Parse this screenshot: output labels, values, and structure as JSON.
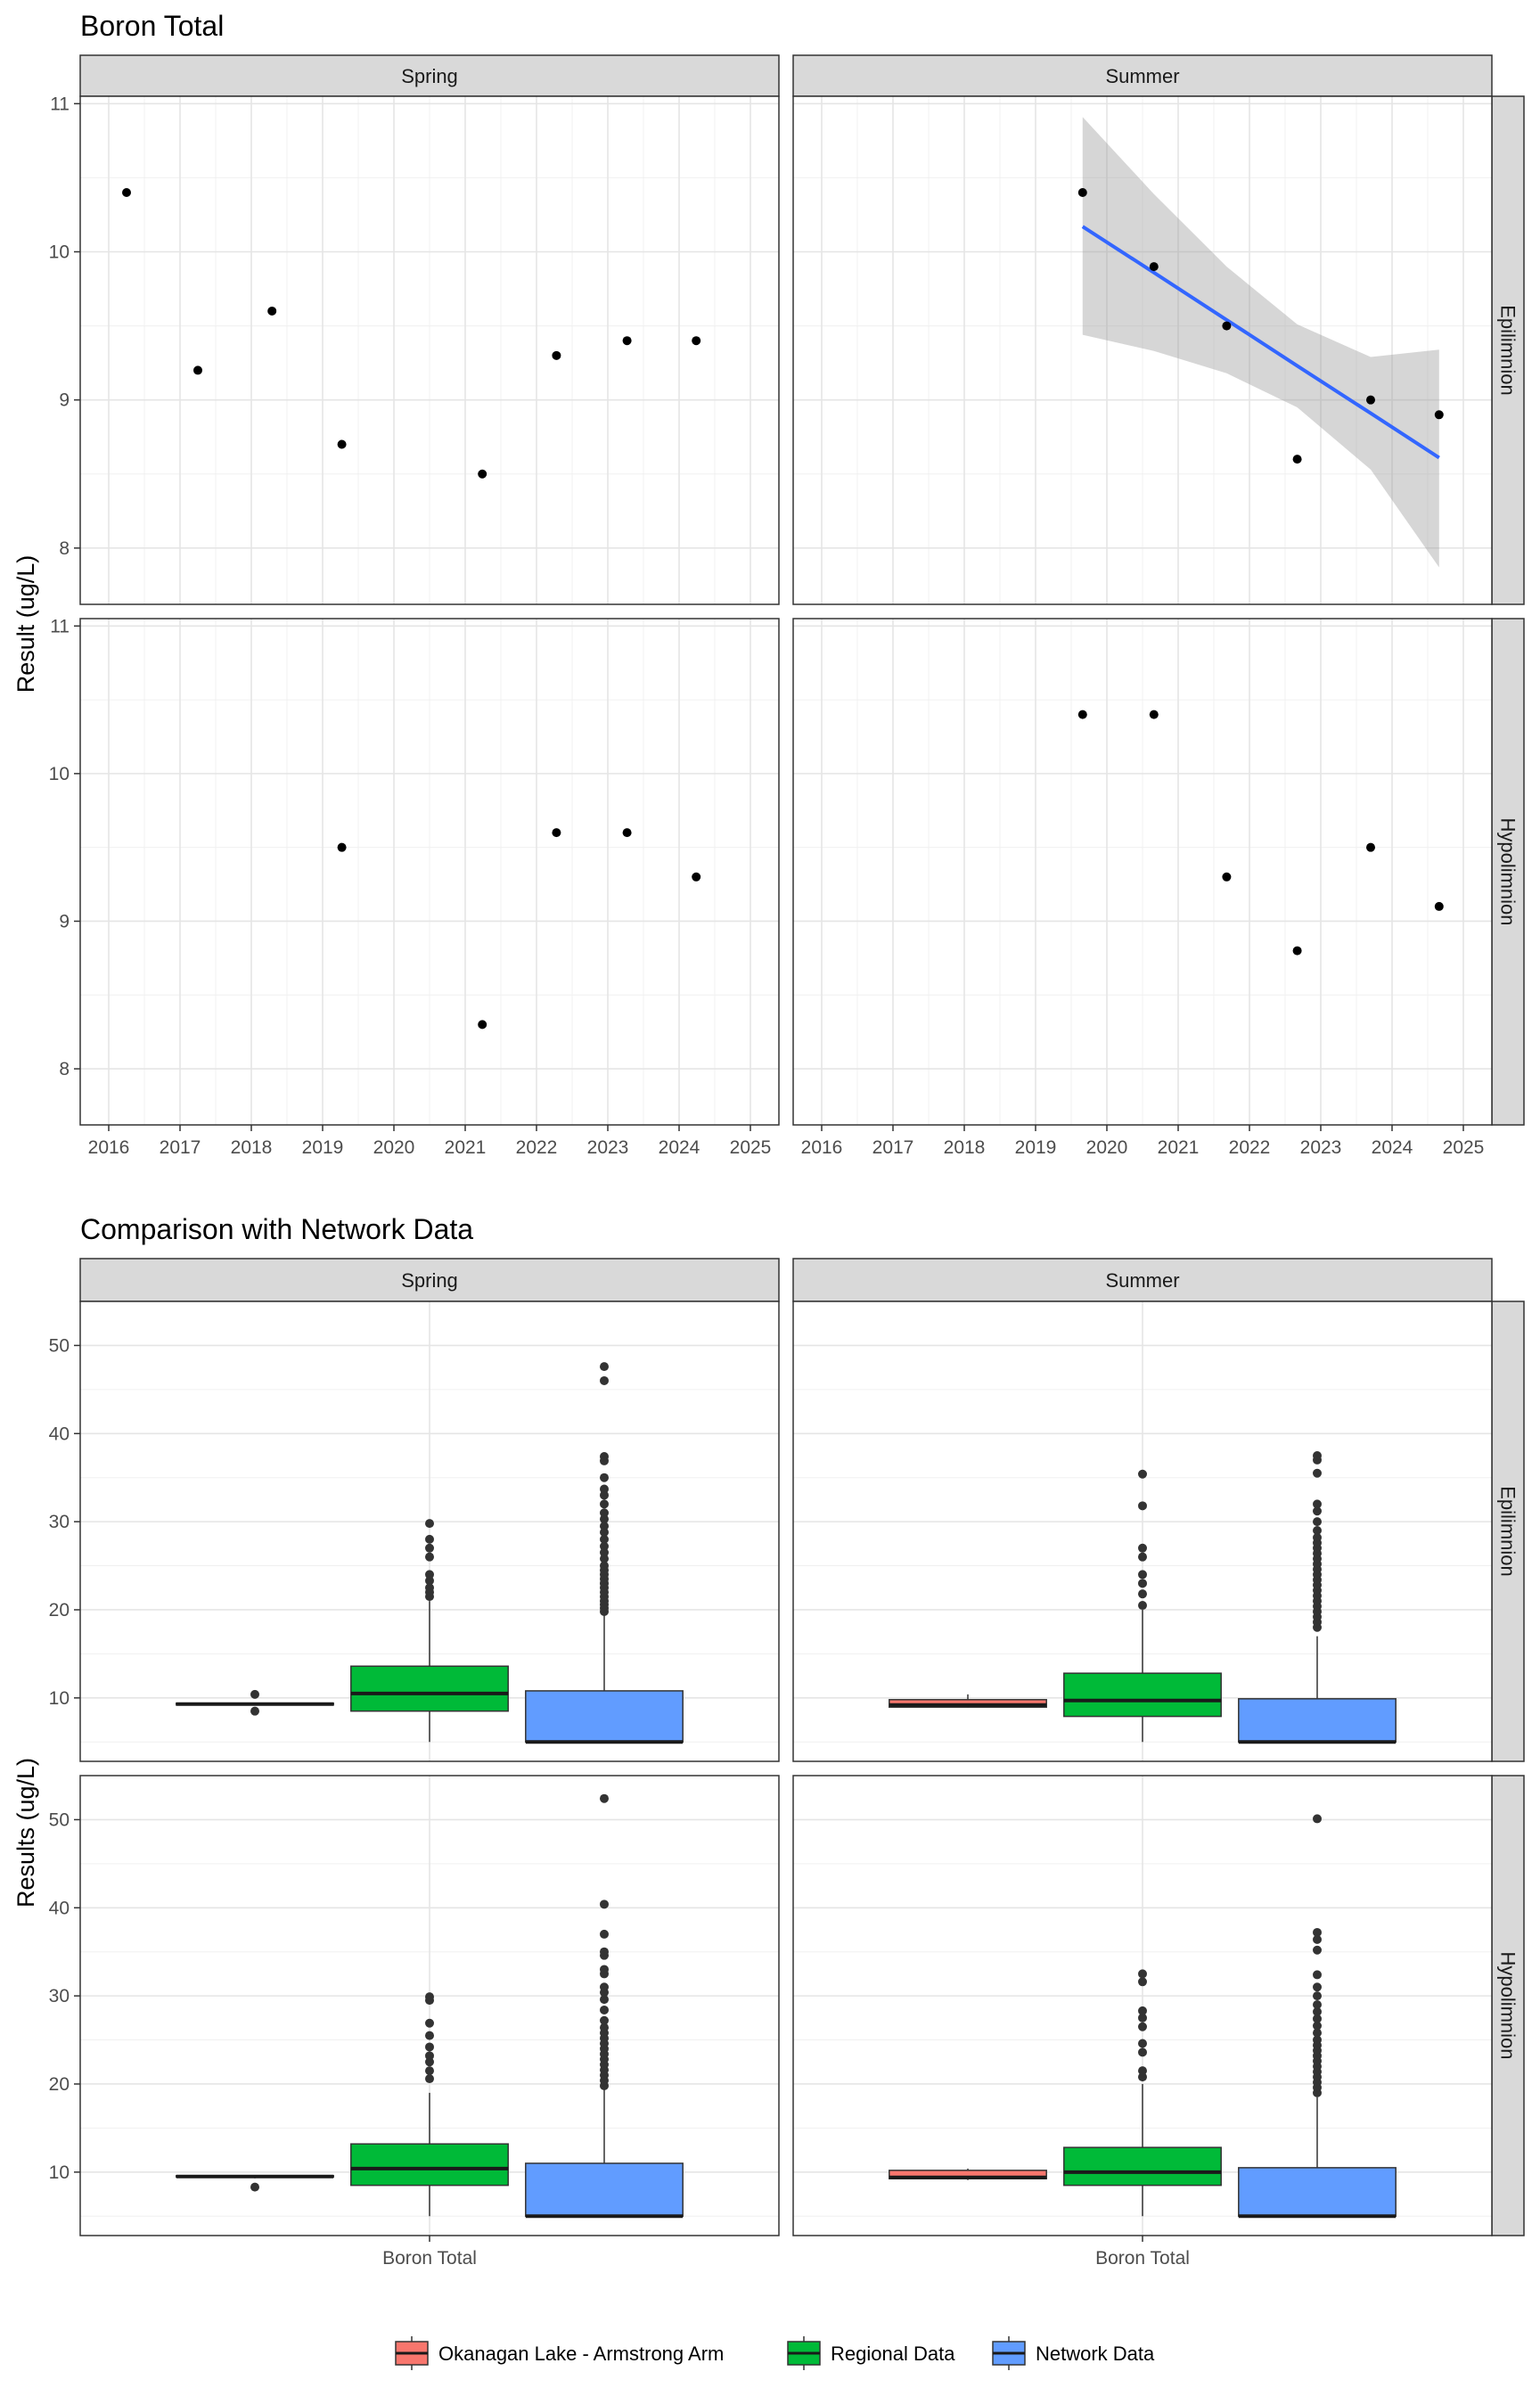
{
  "chart_data": [
    {
      "type": "scatter",
      "title": "Boron Total",
      "ylabel": "Result (ug/L)",
      "xlabel": "",
      "x_ticks": [
        "2016",
        "2017",
        "2018",
        "2019",
        "2020",
        "2021",
        "2022",
        "2023",
        "2024",
        "2025"
      ],
      "y_ticks": [
        "8",
        "9",
        "10",
        "11"
      ],
      "xlim": [
        2015.6,
        2025.4
      ],
      "ylim": [
        7.62,
        11.05
      ],
      "columns": [
        "Spring",
        "Summer"
      ],
      "rows": [
        "Epilimnion",
        "Hypolimnion"
      ],
      "grid": true,
      "panels": [
        {
          "column": "Spring",
          "row": "Epilimnion",
          "points": [
            [
              2016.25,
              10.4
            ],
            [
              2017.25,
              9.2
            ],
            [
              2018.29,
              9.6
            ],
            [
              2019.27,
              8.7
            ],
            [
              2021.24,
              8.5
            ],
            [
              2022.28,
              9.3
            ],
            [
              2023.27,
              9.4
            ],
            [
              2024.24,
              9.4
            ]
          ]
        },
        {
          "column": "Summer",
          "row": "Epilimnion",
          "points": [
            [
              2019.66,
              10.4
            ],
            [
              2020.66,
              9.9
            ],
            [
              2021.68,
              9.5
            ],
            [
              2022.67,
              8.6
            ],
            [
              2023.7,
              9.0
            ],
            [
              2024.66,
              8.9
            ]
          ],
          "trend": {
            "x": [
              2019.66,
              2020.66,
              2021.68,
              2022.67,
              2023.7,
              2024.66
            ],
            "y": [
              10.17,
              9.86,
              9.54,
              9.23,
              8.91,
              8.61
            ],
            "lower": [
              9.44,
              9.33,
              9.18,
              8.95,
              8.53,
              7.87
            ],
            "upper": [
              10.91,
              10.39,
              9.9,
              9.51,
              9.29,
              9.34
            ],
            "color": "#3366FF",
            "band_color": "#999999"
          }
        },
        {
          "column": "Spring",
          "row": "Hypolimnion",
          "points": [
            [
              2019.27,
              9.5
            ],
            [
              2021.24,
              8.3
            ],
            [
              2022.28,
              9.6
            ],
            [
              2023.27,
              9.6
            ],
            [
              2024.24,
              9.3
            ]
          ]
        },
        {
          "column": "Summer",
          "row": "Hypolimnion",
          "points": [
            [
              2019.66,
              10.4
            ],
            [
              2020.66,
              10.4
            ],
            [
              2021.68,
              9.3
            ],
            [
              2022.67,
              8.8
            ],
            [
              2023.7,
              9.5
            ],
            [
              2024.66,
              9.1
            ]
          ]
        }
      ]
    },
    {
      "type": "box",
      "title": "Comparison with Network Data",
      "ylabel": "Results (ug/L)",
      "xlabel": "",
      "categories": [
        "Boron Total"
      ],
      "y_ticks": [
        "10",
        "20",
        "30",
        "40",
        "50"
      ],
      "ylim": [
        2.8,
        55.0
      ],
      "columns": [
        "Spring",
        "Summer"
      ],
      "rows": [
        "Epilimnion",
        "Hypolimnion"
      ],
      "legend": {
        "placement": "bottom",
        "entries": [
          {
            "name": "Okanagan Lake - Armstrong Arm",
            "color": "#F8766D"
          },
          {
            "name": "Regional Data",
            "color": "#00BA38"
          },
          {
            "name": "Network Data",
            "color": "#619CFF"
          }
        ]
      },
      "panels": [
        {
          "column": "Spring",
          "row": "Epilimnion",
          "boxes": [
            {
              "series": "Okanagan Lake - Armstrong Arm",
              "min": 9.2,
              "q1": 9.2,
              "median": 9.3,
              "q3": 9.4,
              "max": 9.4,
              "outliers": [
                10.4,
                8.5
              ]
            },
            {
              "series": "Regional Data",
              "min": 5.0,
              "q1": 8.5,
              "median": 10.5,
              "q3": 13.6,
              "max": 21.0,
              "outliers": [
                21.5,
                22.0,
                22.5,
                23.3,
                24.0,
                26.0,
                27.0,
                28.0,
                29.8
              ]
            },
            {
              "series": "Network Data",
              "min": 5.0,
              "q1": 5.0,
              "median": 5.0,
              "q3": 10.8,
              "max": 19.5,
              "outliers": [
                19.8,
                20.2,
                20.6,
                21.0,
                21.5,
                22.0,
                22.5,
                23.0,
                23.5,
                24.0,
                24.5,
                25.0,
                25.8,
                26.5,
                27.2,
                28.0,
                28.8,
                29.5,
                30.3,
                31.0,
                32.0,
                33.0,
                33.7,
                35.0,
                36.9,
                37.4,
                46.0,
                47.6
              ]
            }
          ]
        },
        {
          "column": "Summer",
          "row": "Epilimnion",
          "boxes": [
            {
              "series": "Okanagan Lake - Armstrong Arm",
              "min": 8.9,
              "q1": 8.95,
              "median": 9.2,
              "q3": 9.8,
              "max": 10.4,
              "outliers": []
            },
            {
              "series": "Regional Data",
              "min": 5.0,
              "q1": 7.9,
              "median": 9.7,
              "q3": 12.8,
              "max": 20.0,
              "outliers": [
                20.5,
                21.8,
                23.0,
                24.0,
                26.0,
                27.0,
                31.8,
                35.4
              ]
            },
            {
              "series": "Network Data",
              "min": 5.0,
              "q1": 5.0,
              "median": 5.0,
              "q3": 9.9,
              "max": 17.0,
              "outliers": [
                18.0,
                18.6,
                19.2,
                19.8,
                20.4,
                21.0,
                21.6,
                22.2,
                22.8,
                23.4,
                24.0,
                24.6,
                25.2,
                25.8,
                26.4,
                27.0,
                27.6,
                28.2,
                29.0,
                30.0,
                31.2,
                32.0,
                35.5,
                37.0,
                37.5
              ]
            }
          ]
        },
        {
          "column": "Spring",
          "row": "Hypolimnion",
          "boxes": [
            {
              "series": "Okanagan Lake - Armstrong Arm",
              "min": 9.3,
              "q1": 9.45,
              "median": 9.5,
              "q3": 9.6,
              "max": 9.6,
              "outliers": [
                8.3
              ]
            },
            {
              "series": "Regional Data",
              "min": 5.0,
              "q1": 8.5,
              "median": 10.4,
              "q3": 13.2,
              "max": 19.0,
              "outliers": [
                20.6,
                21.5,
                22.5,
                23.2,
                24.2,
                25.5,
                26.9,
                29.5,
                29.9
              ]
            },
            {
              "series": "Network Data",
              "min": 5.0,
              "q1": 5.0,
              "median": 5.0,
              "q3": 11.0,
              "max": 19.5,
              "outliers": [
                19.8,
                20.4,
                21.0,
                21.6,
                22.2,
                22.8,
                23.4,
                24.0,
                24.6,
                25.2,
                25.8,
                26.4,
                27.2,
                28.4,
                29.6,
                30.4,
                31.0,
                32.5,
                33.0,
                34.6,
                35.0,
                37.0,
                40.4,
                52.4
              ]
            }
          ]
        },
        {
          "column": "Summer",
          "row": "Hypolimnion",
          "boxes": [
            {
              "series": "Okanagan Lake - Armstrong Arm",
              "min": 9.1,
              "q1": 9.25,
              "median": 9.4,
              "q3": 10.2,
              "max": 10.4,
              "outliers": []
            },
            {
              "series": "Regional Data",
              "min": 5.0,
              "q1": 8.5,
              "median": 10.0,
              "q3": 12.8,
              "max": 20.0,
              "outliers": [
                20.8,
                21.5,
                23.6,
                24.6,
                26.5,
                27.5,
                28.3,
                31.6,
                32.5
              ]
            },
            {
              "series": "Network Data",
              "min": 5.0,
              "q1": 5.0,
              "median": 5.0,
              "q3": 10.5,
              "max": 18.5,
              "outliers": [
                19.0,
                19.6,
                20.2,
                20.8,
                21.4,
                22.0,
                22.6,
                23.2,
                23.8,
                24.4,
                25.0,
                25.8,
                26.6,
                27.4,
                28.2,
                29.0,
                30.0,
                31.0,
                32.4,
                35.2,
                36.4,
                37.2,
                50.1
              ]
            }
          ]
        }
      ]
    }
  ]
}
